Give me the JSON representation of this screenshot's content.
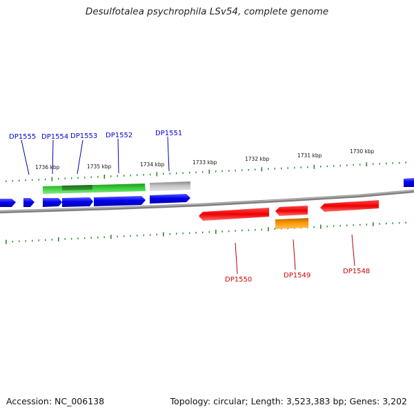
{
  "title": "Desulfotalea psychrophila LSv54, complete genome",
  "footer": {
    "accession": "Accession: NC_006138",
    "summary": "Topology: circular; Length: 3,523,383 bp; Genes: 3,202"
  },
  "scale": {
    "unit": "kbp",
    "ticks": [
      "1736 kbp",
      "1735 kbp",
      "1734 kbp",
      "1733 kbp",
      "1732 kbp",
      "1731 kbp",
      "1730 kbp"
    ]
  },
  "genes_forward": [
    {
      "name": "DP1555",
      "color": "#0000cc"
    },
    {
      "name": "DP1554",
      "color": "#0000cc"
    },
    {
      "name": "DP1553",
      "color": "#0000cc"
    },
    {
      "name": "DP1552",
      "color": "#0000cc"
    },
    {
      "name": "DP1551",
      "color": "#0000cc"
    }
  ],
  "genes_reverse": [
    {
      "name": "DP1550",
      "color": "#cc0000"
    },
    {
      "name": "DP1549",
      "color": "#cc0000"
    },
    {
      "name": "DP1548",
      "color": "#cc0000"
    }
  ],
  "colors": {
    "forward_gene": "#0000ff",
    "reverse_gene": "#ff0000",
    "green_feature": "#33cc33",
    "gray_feature": "#bbbbbb",
    "orange_feature": "#ff9900",
    "backbone": "#888888",
    "tick": "#228822"
  }
}
